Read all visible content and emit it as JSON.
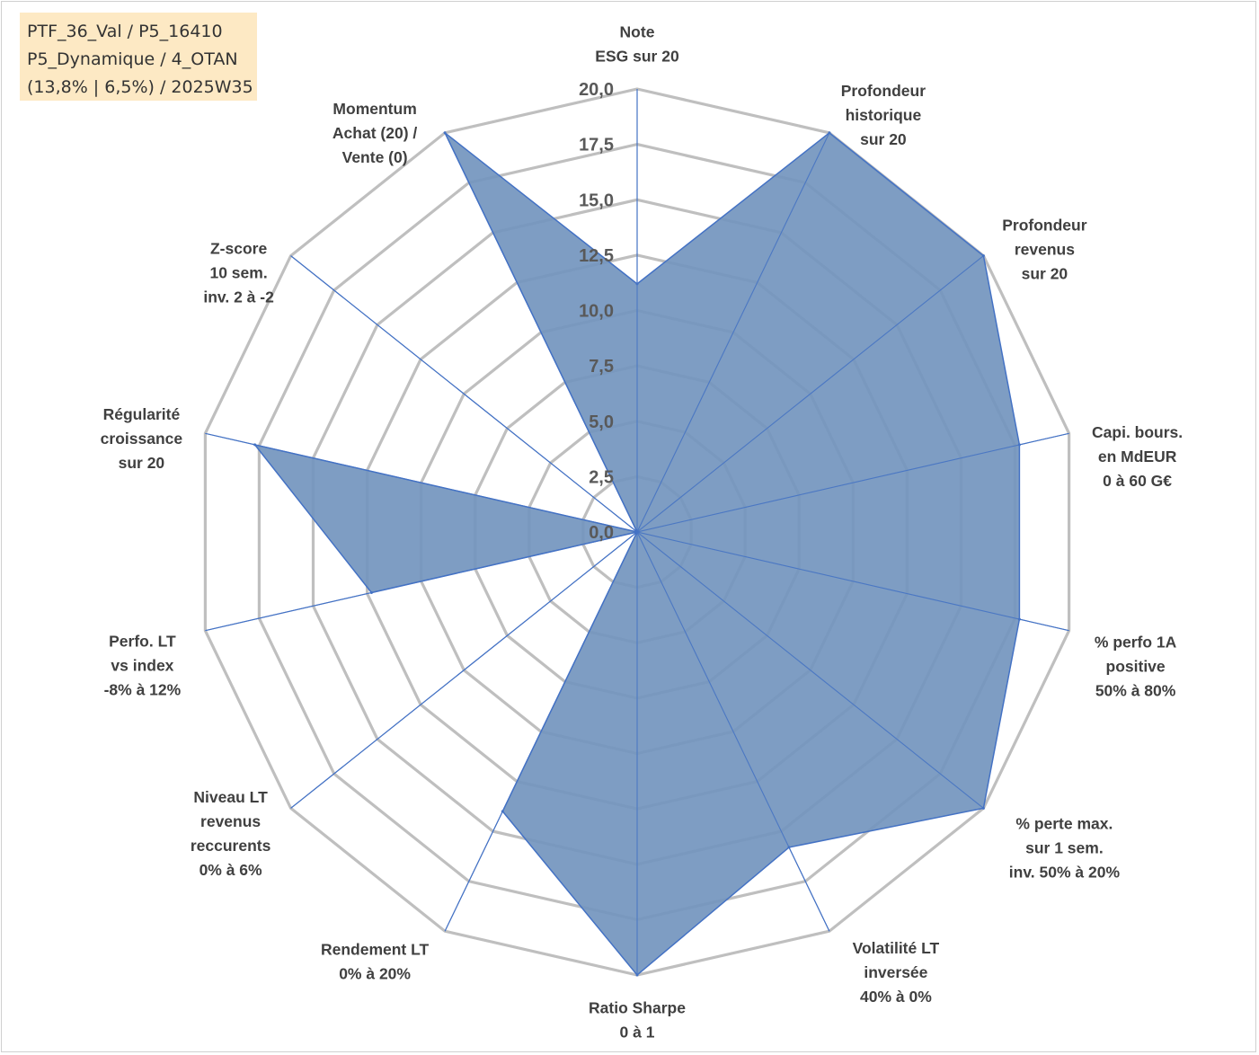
{
  "info_box": {
    "line1": "PTF_36_Val / P5_16410",
    "line2": "P5_Dynamique / 4_OTAN",
    "line3": "(13,8% | 6,5%) / 2025W35"
  },
  "chart_data": {
    "type": "radar",
    "rlim": [
      0,
      20
    ],
    "tick_values": [
      0,
      2.5,
      5,
      7.5,
      10,
      12.5,
      15,
      17.5,
      20
    ],
    "tick_labels": [
      "0,0",
      "2,5",
      "5,0",
      "7,5",
      "10,0",
      "12,5",
      "15,0",
      "17,5",
      "20,0"
    ],
    "axes": [
      [
        "Note",
        "ESG sur 20"
      ],
      [
        "Profondeur",
        "historique",
        "sur 20"
      ],
      [
        "Profondeur",
        "revenus",
        "sur 20"
      ],
      [
        "Capi. bours.",
        "en MdEUR",
        "0 à 60 G€"
      ],
      [
        "% perfo 1A",
        "positive",
        "50% à 80%"
      ],
      [
        "% perte max.",
        "sur 1 sem.",
        "inv. 50% à 20%"
      ],
      [
        "Volatilité LT",
        "inversée",
        "40% à 0%"
      ],
      [
        "Ratio Sharpe",
        "0 à 1"
      ],
      [
        "Rendement LT",
        "0% à 20%"
      ],
      [
        "Niveau LT",
        "revenus",
        "reccurents",
        "0% à 6%"
      ],
      [
        "Perfo. LT",
        "vs index",
        "-8% à 12%"
      ],
      [
        "Régularité",
        "croissance",
        "sur 20"
      ],
      [
        "Z-score",
        "10 sem.",
        "inv. 2 à -2"
      ],
      [
        "Momentum",
        "Achat (20) /",
        "Vente (0)"
      ]
    ],
    "series": [
      {
        "values": [
          11.2,
          20,
          20,
          17.7,
          17.7,
          20,
          15.8,
          20,
          14.0,
          0,
          12.3,
          17.7,
          0,
          20
        ],
        "fill": "#7395be",
        "stroke": "#4472c4"
      }
    ],
    "grid": true,
    "grid_color": "#bfbfbf",
    "axis_line_color": "#4472c4"
  }
}
